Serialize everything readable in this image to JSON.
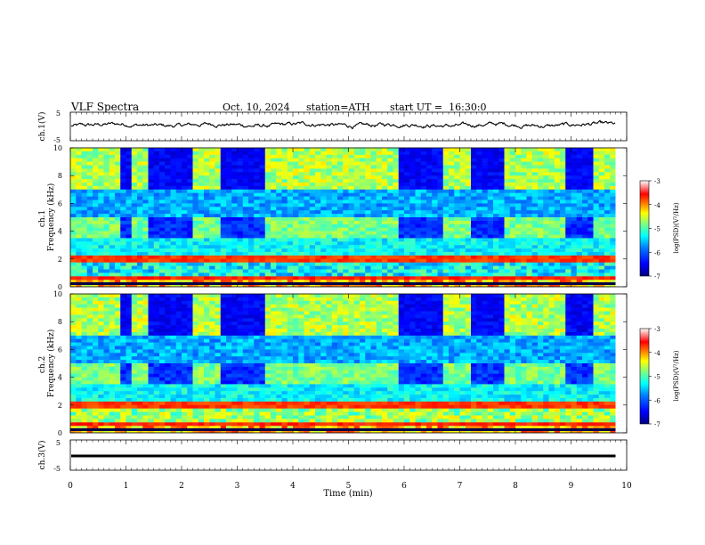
{
  "header": {
    "title": "VLF Spectra",
    "date": "Oct. 10, 2024",
    "station": "station=ATH",
    "start_ut": "start UT =  16:30:0"
  },
  "chart_data": [
    {
      "type": "line",
      "panel": "ch1-waveform",
      "ylabel": "ch.1(V)",
      "yticks": [
        "5",
        "-5"
      ],
      "ylim": [
        -5,
        5
      ],
      "xlim": [
        0,
        10
      ],
      "series": [
        {
          "style": "noisy waveform",
          "mean": 0.5,
          "amplitude": 1.0,
          "x_end": 9.8
        }
      ]
    },
    {
      "type": "heatmap",
      "panel": "ch1-spectrogram",
      "ylabel": "ch.1\nFrequency (kHz)",
      "yticks": [
        "0",
        "2",
        "4",
        "6",
        "8",
        "10"
      ],
      "ylim": [
        0,
        10
      ],
      "xlim": [
        0,
        9.8
      ],
      "colorbar": {
        "label": "log(PSD)(V²/Hz)",
        "ticks": [
          "-3",
          "-4",
          "-5",
          "-6",
          "-7"
        ],
        "range": [
          -7,
          -3
        ]
      },
      "quiet_intervals_min": [
        [
          0.95,
          1.1
        ],
        [
          1.45,
          2.15
        ],
        [
          2.75,
          3.5
        ],
        [
          5.9,
          6.7
        ],
        [
          7.25,
          7.8
        ],
        [
          8.9,
          9.4
        ]
      ]
    },
    {
      "type": "heatmap",
      "panel": "ch2-spectrogram",
      "ylabel": "ch.2\nFrequency (kHz)",
      "yticks": [
        "0",
        "2",
        "4",
        "6",
        "8",
        "10"
      ],
      "ylim": [
        0,
        10
      ],
      "xlim": [
        0,
        9.8
      ],
      "colorbar": {
        "label": "log(PSD)(V²/Hz)",
        "ticks": [
          "-3",
          "-4",
          "-5",
          "-6",
          "-7"
        ],
        "range": [
          -7,
          -3
        ]
      },
      "quiet_intervals_min": [
        [
          0.95,
          1.1
        ],
        [
          1.45,
          2.15
        ],
        [
          2.75,
          3.5
        ],
        [
          5.9,
          6.7
        ],
        [
          7.25,
          7.8
        ],
        [
          8.9,
          9.4
        ]
      ]
    },
    {
      "type": "line",
      "panel": "ch3-waveform",
      "ylabel": "ch.3(V)",
      "yticks": [
        "5",
        "-5"
      ],
      "ylim": [
        -5,
        5
      ],
      "xlim": [
        0,
        10
      ],
      "series": [
        {
          "style": "flat",
          "mean": 0,
          "x_end": 9.8
        }
      ]
    }
  ],
  "xaxis": {
    "label": "Time (min)",
    "ticks": [
      "0",
      "1",
      "2",
      "3",
      "4",
      "5",
      "6",
      "7",
      "8",
      "9",
      "10"
    ]
  },
  "colors": {
    "colormap": [
      "#00007f",
      "#0000ff",
      "#007fff",
      "#00ffff",
      "#7fff7f",
      "#ffff00",
      "#ff7f00",
      "#ff0000",
      "#ffffff"
    ]
  }
}
